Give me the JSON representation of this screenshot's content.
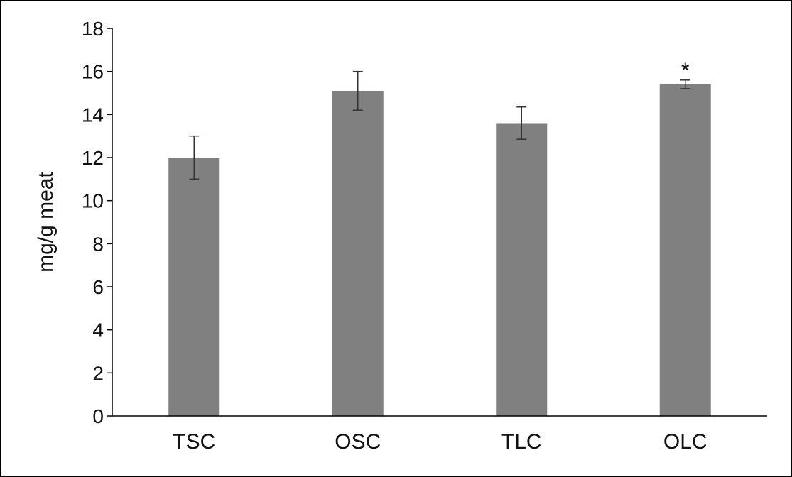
{
  "chart_data": {
    "type": "bar",
    "title": "",
    "xlabel": "",
    "ylabel": "mg/g meat",
    "ylim": [
      0,
      18
    ],
    "yticks": [
      0,
      2,
      4,
      6,
      8,
      10,
      12,
      14,
      16,
      18
    ],
    "categories": [
      "TSC",
      "OSC",
      "TLC",
      "OLC"
    ],
    "values": [
      12.0,
      15.1,
      13.6,
      15.4
    ],
    "error": [
      1.0,
      0.9,
      0.75,
      0.2
    ],
    "annotations": [
      "",
      "",
      "",
      "*"
    ],
    "grid": false,
    "legend": "none",
    "bar_color": "#808080",
    "error_color": "#333333",
    "axis_color": "#000000"
  }
}
